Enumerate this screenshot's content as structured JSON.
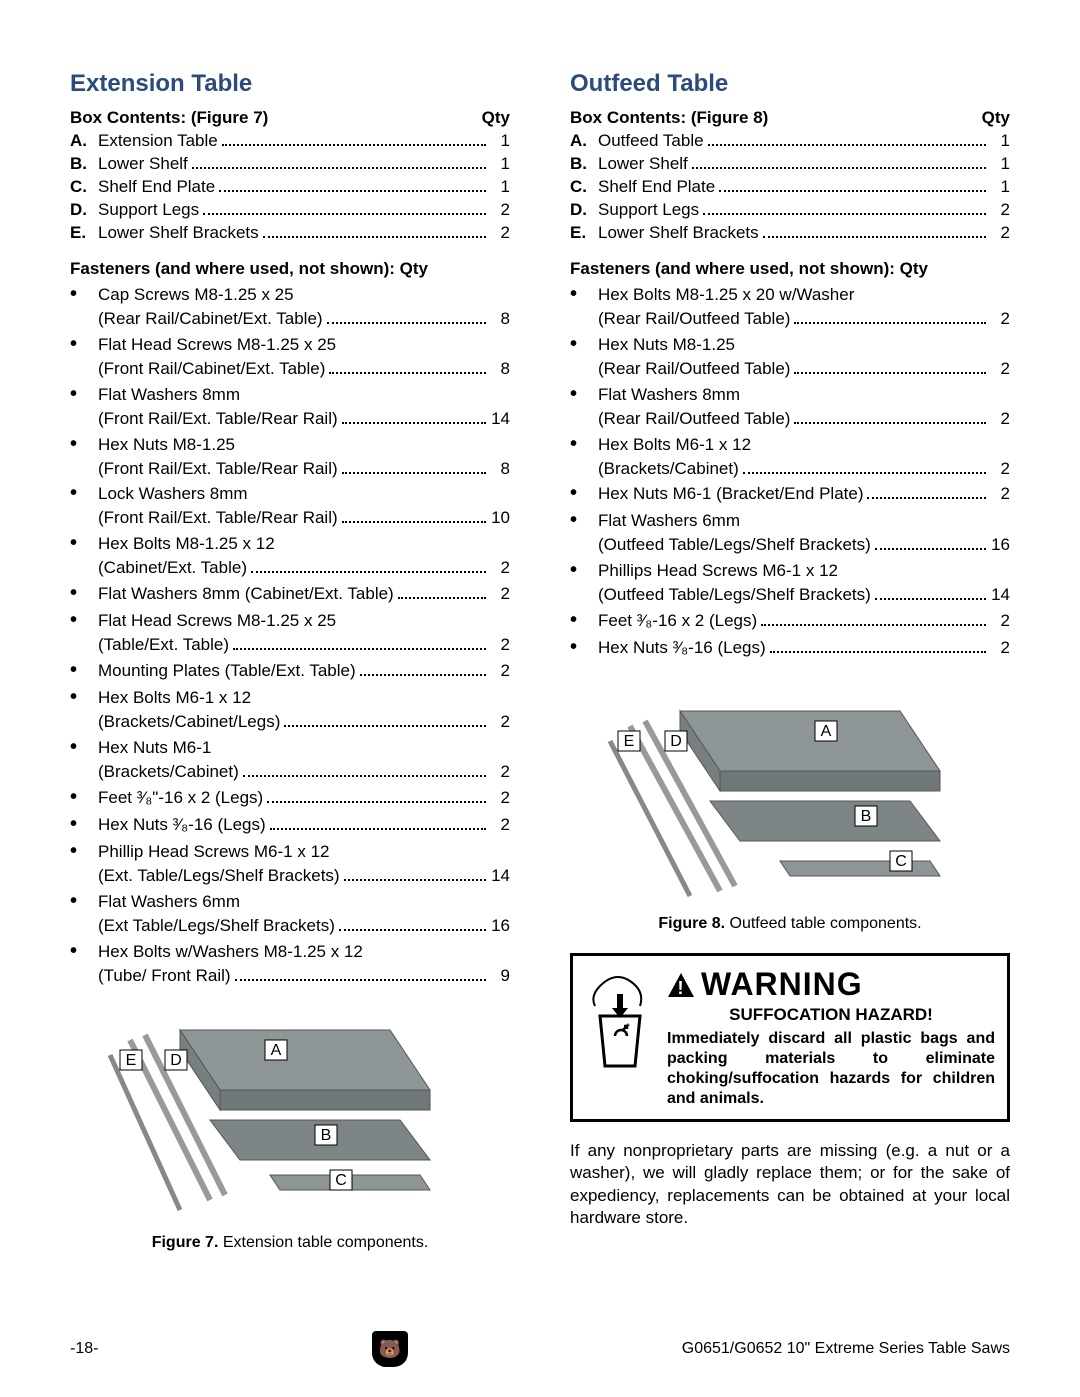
{
  "left": {
    "title": "Extension Table",
    "box_label": "Box Contents:  (Figure 7)",
    "qty_label": "Qty",
    "contents": [
      {
        "letter": "A.",
        "name": "Extension Table",
        "qty": "1"
      },
      {
        "letter": "B.",
        "name": "Lower Shelf",
        "qty": "1"
      },
      {
        "letter": "C.",
        "name": "Shelf End Plate",
        "qty": "1"
      },
      {
        "letter": "D.",
        "name": "Support Legs",
        "qty": "2"
      },
      {
        "letter": "E.",
        "name": "Lower Shelf Brackets",
        "qty": "2"
      }
    ],
    "fast_label": "Fasteners (and where used, not shown):  Qty",
    "fasteners": [
      {
        "l1": "Cap Screws M8-1.25 x 25",
        "l2": "(Rear Rail/Cabinet/Ext. Table)",
        "qty": "8"
      },
      {
        "l1": "Flat Head Screws M8-1.25 x 25",
        "l2": "(Front Rail/Cabinet/Ext. Table)",
        "qty": "8"
      },
      {
        "l1": "Flat Washers 8mm",
        "l2": "(Front Rail/Ext. Table/Rear Rail)",
        "qty": "14"
      },
      {
        "l1": "Hex Nuts M8-1.25",
        "l2": "(Front Rail/Ext. Table/Rear Rail)",
        "qty": "8"
      },
      {
        "l1": "Lock Washers 8mm",
        "l2": "(Front Rail/Ext. Table/Rear Rail)",
        "qty": "10"
      },
      {
        "l1": "Hex Bolts M8-1.25 x 12",
        "l2": "(Cabinet/Ext. Table)",
        "qty": "2"
      },
      {
        "l1": "Flat Washers 8mm (Cabinet/Ext. Table)",
        "qty": "2",
        "single": true
      },
      {
        "l1": "Flat Head Screws M8-1.25 x 25",
        "l2": "(Table/Ext. Table)",
        "qty": "2"
      },
      {
        "l1": "Mounting Plates (Table/Ext. Table)",
        "qty": "2",
        "single": true
      },
      {
        "l1": "Hex Bolts M6-1 x 12",
        "l2": "(Brackets/Cabinet/Legs)",
        "qty": "2"
      },
      {
        "l1": "Hex Nuts M6-1",
        "l2": "(Brackets/Cabinet)",
        "qty": "2"
      },
      {
        "l1": "Feet ³⁄₈\"-16 x 2 (Legs)",
        "qty": "2",
        "single": true
      },
      {
        "l1": "Hex Nuts ³⁄₈-16 (Legs)",
        "qty": "2",
        "single": true
      },
      {
        "l1": "Phillip Head Screws M6-1 x 12",
        "l2": "(Ext. Table/Legs/Shelf Brackets)",
        "qty": "14"
      },
      {
        "l1": "Flat Washers 6mm",
        "l2": "(Ext Table/Legs/Shelf Brackets)",
        "qty": "16"
      },
      {
        "l1": "Hex Bolts w/Washers M8-1.25 x 12",
        "l2": "(Tube/ Front Rail)",
        "qty": "9"
      }
    ],
    "figure": {
      "num": "Figure 7.",
      "caption": " Extension table components.",
      "labels": [
        "A",
        "B",
        "C",
        "D",
        "E"
      ],
      "colors": {
        "table": "#8e9698",
        "shelf": "#7d8587",
        "box_fill": "#ffffff",
        "box_stroke": "#000000"
      }
    }
  },
  "right": {
    "title": "Outfeed Table",
    "box_label": "Box Contents:  (Figure 8)",
    "qty_label": "Qty",
    "contents": [
      {
        "letter": "A.",
        "name": "Outfeed Table",
        "qty": "1"
      },
      {
        "letter": "B.",
        "name": "Lower Shelf",
        "qty": "1"
      },
      {
        "letter": "C.",
        "name": "Shelf End Plate",
        "qty": "1"
      },
      {
        "letter": "D.",
        "name": "Support Legs",
        "qty": "2"
      },
      {
        "letter": "E.",
        "name": "Lower Shelf Brackets",
        "qty": "2"
      }
    ],
    "fast_label": "Fasteners (and where used, not shown):  Qty",
    "fasteners": [
      {
        "l1": "Hex Bolts M8-1.25 x 20 w/Washer",
        "l2": "(Rear Rail/Outfeed Table)",
        "qty": "2"
      },
      {
        "l1": "Hex Nuts M8-1.25",
        "l2": "(Rear Rail/Outfeed Table)",
        "qty": "2"
      },
      {
        "l1": "Flat Washers 8mm",
        "l2": "(Rear Rail/Outfeed Table)",
        "qty": "2"
      },
      {
        "l1": "Hex Bolts M6-1 x 12",
        "l2": "(Brackets/Cabinet)",
        "qty": "2"
      },
      {
        "l1": "Hex Nuts M6-1 (Bracket/End Plate)",
        "qty": "2",
        "single": true
      },
      {
        "l1": "Flat Washers 6mm",
        "l2": "(Outfeed Table/Legs/Shelf Brackets)",
        "qty": "16"
      },
      {
        "l1": "Phillips Head Screws M6-1 x 12",
        "l2": "(Outfeed Table/Legs/Shelf Brackets)",
        "qty": "14"
      },
      {
        "l1": "Feet ³⁄₈-16 x 2 (Legs)",
        "qty": "2",
        "single": true
      },
      {
        "l1": "Hex Nuts ³⁄₈-16 (Legs)",
        "qty": "2",
        "single": true
      }
    ],
    "figure": {
      "num": "Figure 8.",
      "caption": " Outfeed table components.",
      "labels": [
        "A",
        "B",
        "C",
        "D",
        "E"
      ],
      "colors": {
        "table": "#8e9698",
        "shelf": "#7d8587",
        "box_fill": "#ffffff",
        "box_stroke": "#000000"
      }
    },
    "warning": {
      "title": "WARNING",
      "sub": "SUFFOCATION HAZARD!",
      "body": "Immediately discard all plastic bags and packing materials to eliminate choking/suffocation hazards for children and animals."
    },
    "para": "If any nonproprietary parts are missing (e.g. a nut or a washer), we will gladly replace them; or for the sake of expediency, replacements can be obtained at your local hardware store."
  },
  "footer": {
    "page": "-18-",
    "doc": "G0651/G0652 10\" Extreme Series Table Saws"
  }
}
